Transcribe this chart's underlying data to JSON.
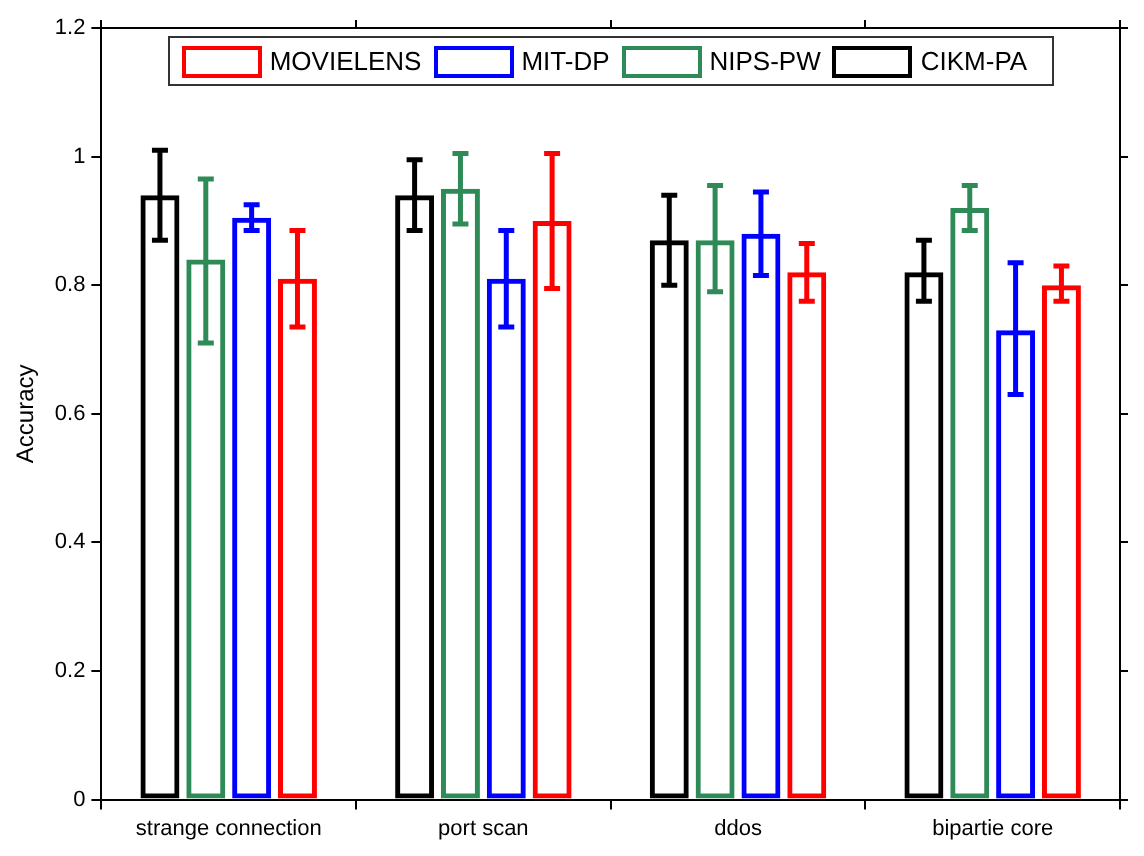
{
  "chart_data": {
    "type": "bar",
    "ylabel": "Accuracy",
    "categories": [
      "strange connection",
      "port scan",
      "ddos",
      "bipartie core"
    ],
    "series": [
      {
        "name": "CIKM-PA",
        "color": "#000000",
        "values": [
          0.94,
          0.94,
          0.87,
          0.82
        ],
        "errors": [
          [
            0.87,
            1.01
          ],
          [
            0.885,
            0.995
          ],
          [
            0.8,
            0.94
          ],
          [
            0.775,
            0.87
          ]
        ]
      },
      {
        "name": "NIPS-PW",
        "color": "#2e8b57",
        "values": [
          0.84,
          0.95,
          0.87,
          0.92
        ],
        "errors": [
          [
            0.71,
            0.965
          ],
          [
            0.895,
            1.005
          ],
          [
            0.79,
            0.955
          ],
          [
            0.885,
            0.955
          ]
        ]
      },
      {
        "name": "MIT-DP",
        "color": "#0000ff",
        "values": [
          0.905,
          0.81,
          0.88,
          0.73
        ],
        "errors": [
          [
            0.885,
            0.925
          ],
          [
            0.735,
            0.885
          ],
          [
            0.815,
            0.945
          ],
          [
            0.63,
            0.835
          ]
        ]
      },
      {
        "name": "MOVIELENS",
        "color": "#ff0000",
        "values": [
          0.81,
          0.9,
          0.82,
          0.8
        ],
        "errors": [
          [
            0.735,
            0.885
          ],
          [
            0.795,
            1.005
          ],
          [
            0.775,
            0.865
          ],
          [
            0.775,
            0.83
          ]
        ]
      }
    ],
    "ylim": [
      0,
      1.2
    ],
    "yticks": [
      0,
      0.2,
      0.4,
      0.6,
      0.8,
      1,
      1.2
    ],
    "grid": false,
    "legend": "top"
  }
}
